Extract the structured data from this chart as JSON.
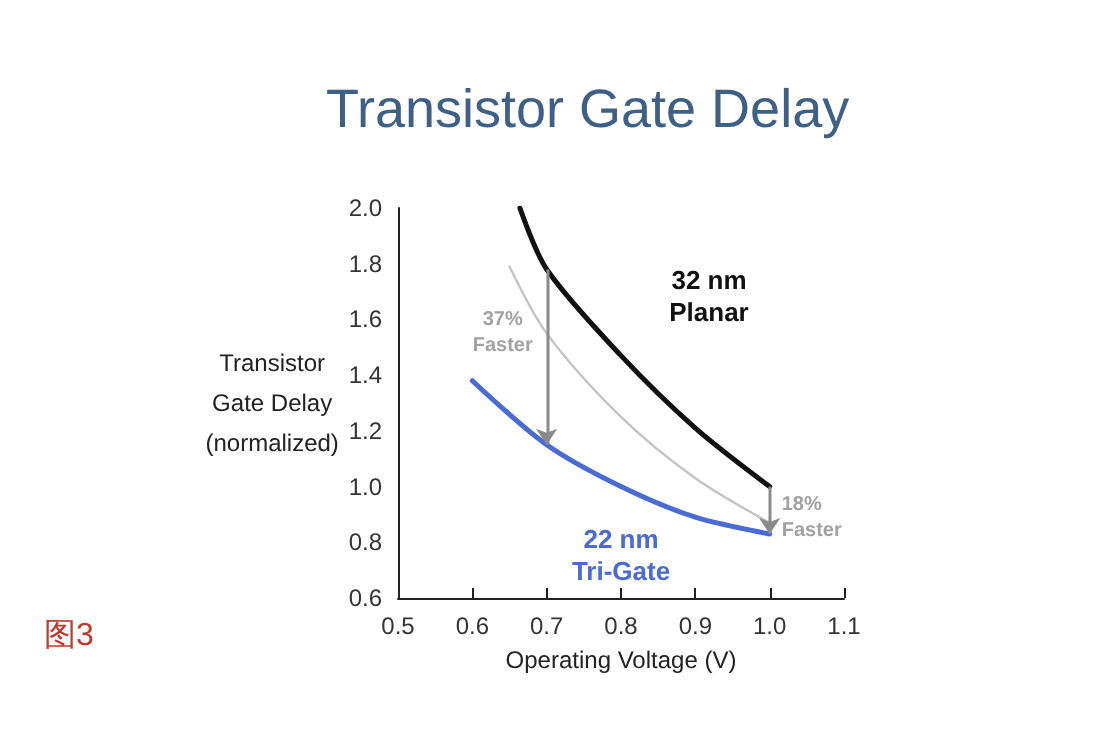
{
  "chart_data": {
    "type": "line",
    "title": "Transistor Gate Delay",
    "xlabel": "Operating Voltage (V)",
    "ylabel": "Transistor Gate Delay (normalized)",
    "xlim": [
      0.5,
      1.1
    ],
    "xticks": [
      0.5,
      0.6,
      0.7,
      0.8,
      0.9,
      {
        "value": 1,
        "label": "1.0"
      },
      1.1
    ],
    "ylim": [
      0.6,
      2.0
    ],
    "yticks": [
      0.6,
      0.8,
      {
        "value": 1,
        "label": "1.0"
      },
      1.2,
      1.4,
      1.6,
      1.8,
      {
        "value": 2,
        "label": "2.0"
      }
    ],
    "grid": false,
    "legend": false,
    "marker": "none",
    "line_style": "solid",
    "series": [
      {
        "name": "32 nm Planar",
        "color": "#111111",
        "x": [
          0.664,
          0.7,
          0.8,
          0.9,
          1.0
        ],
        "values": [
          2.0,
          1.78,
          1.47,
          1.21,
          1.0
        ]
      },
      {
        "color": "#c4c4c4",
        "x": [
          0.65,
          0.7,
          0.8,
          0.9,
          1.0
        ],
        "values": [
          1.79,
          1.55,
          1.25,
          1.03,
          0.87
        ]
      },
      {
        "name": "22 nm Tri-Gate",
        "color": "#4a6ad6",
        "x": [
          0.6,
          0.7,
          0.8,
          0.9,
          1.0
        ],
        "values": [
          1.38,
          1.15,
          1.0,
          0.89,
          0.83
        ]
      }
    ],
    "annotations": [
      "37% Faster",
      "18% Faster",
      "图3"
    ]
  }
}
